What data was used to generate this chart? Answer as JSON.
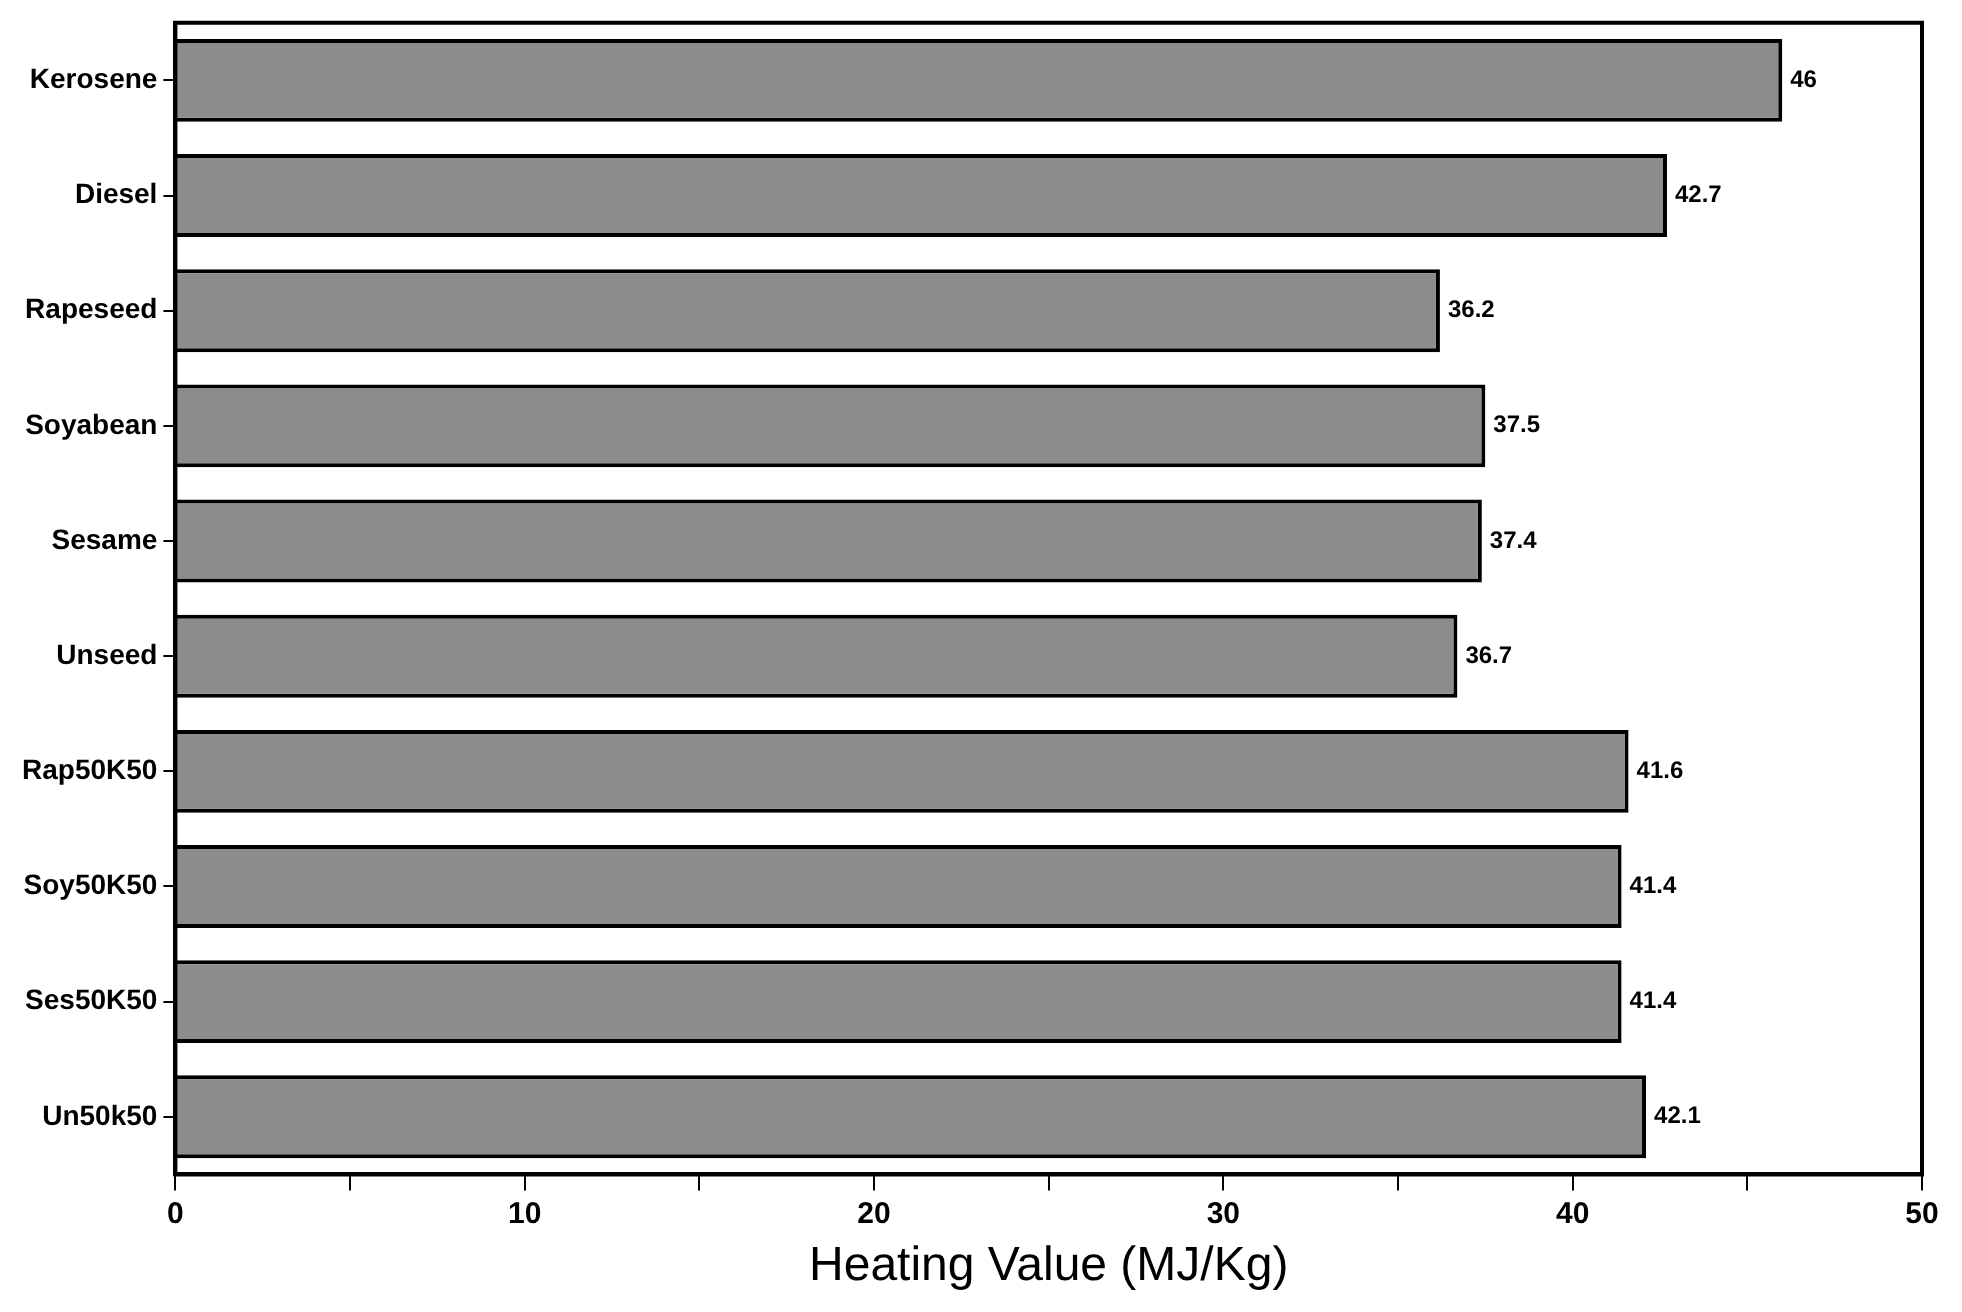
{
  "chart_data": {
    "type": "bar",
    "orientation": "horizontal",
    "xlabel": "Heating Value (MJ/Kg)",
    "categories": [
      "Kerosene",
      "Diesel",
      "Rapeseed",
      "Soyabean",
      "Sesame",
      "Unseed",
      "Rap50K50",
      "Soy50K50",
      "Ses50K50",
      "Un50k50"
    ],
    "values": [
      46,
      42.7,
      36.2,
      37.5,
      37.4,
      36.7,
      41.6,
      41.4,
      41.4,
      42.1
    ],
    "color": "#8c8c8c",
    "xlim": [
      0,
      50
    ],
    "xticks": [
      0,
      {
        "value": 5,
        "label": null
      },
      10,
      {
        "value": 15,
        "label": null
      },
      20,
      {
        "value": 25,
        "label": null
      },
      30,
      {
        "value": 35,
        "label": null
      },
      40,
      {
        "value": 45,
        "label": null
      },
      50
    ],
    "grid": false,
    "data_labels": true
  }
}
